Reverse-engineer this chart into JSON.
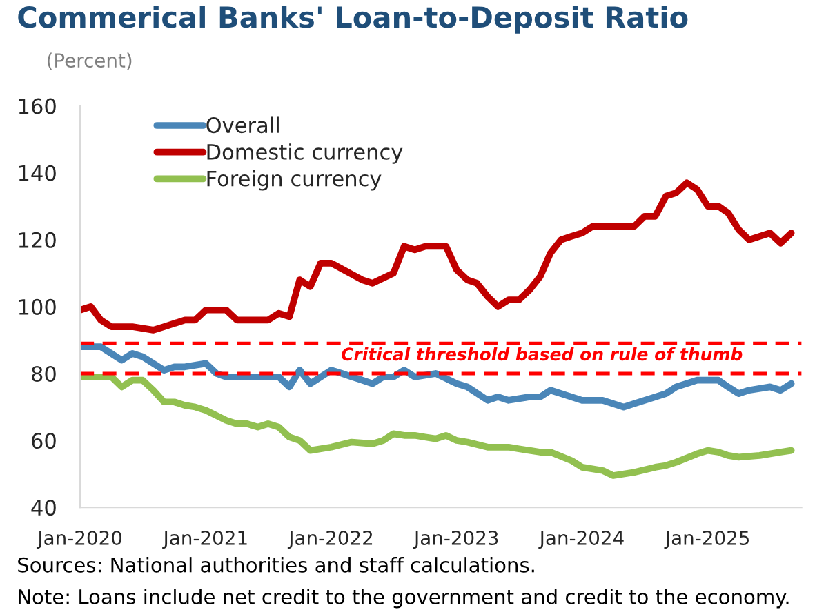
{
  "chart_data": {
    "type": "line",
    "title": "Commerical Banks' Loan-to-Deposit Ratio",
    "subtitle": "(Percent)",
    "xlim": [
      "2020-01",
      "2025-10"
    ],
    "xticks": [
      {
        "value": "2020-01",
        "label": "Jan-2020"
      },
      {
        "value": "2021-01",
        "label": "Jan-2021"
      },
      {
        "value": "2022-01",
        "label": "Jan-2022"
      },
      {
        "value": "2023-01",
        "label": "Jan-2023"
      },
      {
        "value": "2024-01",
        "label": "Jan-2024"
      },
      {
        "value": "2025-01",
        "label": "Jan-2025"
      }
    ],
    "ylim": [
      40,
      160
    ],
    "yticks": [
      40,
      60,
      80,
      100,
      120,
      140,
      160
    ],
    "grid": false,
    "legend": "top left",
    "series": [
      {
        "name": "Overall",
        "color": "#4a86b8",
        "x": [
          "2020-01",
          "2020-03",
          "2020-05",
          "2020-06",
          "2020-07",
          "2020-09",
          "2020-10",
          "2020-11",
          "2021-01",
          "2021-02",
          "2021-03",
          "2021-06",
          "2021-08",
          "2021-09",
          "2021-10",
          "2021-11",
          "2022-01",
          "2022-02",
          "2022-04",
          "2022-05",
          "2022-06",
          "2022-07",
          "2022-08",
          "2022-09",
          "2022-11",
          "2023-01",
          "2023-02",
          "2023-04",
          "2023-05",
          "2023-06",
          "2023-08",
          "2023-09",
          "2023-10",
          "2023-11",
          "2024-01",
          "2024-03",
          "2024-05",
          "2024-06",
          "2024-09",
          "2024-10",
          "2024-12",
          "2025-02",
          "2025-03",
          "2025-04",
          "2025-05",
          "2025-07",
          "2025-08",
          "2025-09"
        ],
        "values": [
          88,
          88,
          84,
          86,
          85,
          81,
          82,
          82,
          83,
          80,
          79,
          79,
          79,
          76,
          81,
          77,
          81,
          80,
          78,
          77,
          79,
          79,
          81,
          79,
          80,
          77,
          76,
          72,
          73,
          72,
          73,
          73,
          75,
          74,
          72,
          72,
          70,
          71,
          74,
          76,
          78,
          78,
          76,
          74,
          75,
          76,
          75,
          77
        ]
      },
      {
        "name": "Domestic currency",
        "color": "#c00000",
        "x": [
          "2020-01",
          "2020-02",
          "2020-03",
          "2020-04",
          "2020-06",
          "2020-08",
          "2020-09",
          "2020-11",
          "2020-12",
          "2021-01",
          "2021-03",
          "2021-04",
          "2021-07",
          "2021-08",
          "2021-09",
          "2021-10",
          "2021-11",
          "2021-12",
          "2022-01",
          "2022-04",
          "2022-05",
          "2022-07",
          "2022-08",
          "2022-09",
          "2022-10",
          "2022-12",
          "2023-01",
          "2023-02",
          "2023-03",
          "2023-04",
          "2023-05",
          "2023-06",
          "2023-07",
          "2023-08",
          "2023-09",
          "2023-10",
          "2023-11",
          "2023-12",
          "2024-01",
          "2024-02",
          "2024-03",
          "2024-05",
          "2024-06",
          "2024-07",
          "2024-08",
          "2024-09",
          "2024-10",
          "2024-11",
          "2024-12",
          "2025-01",
          "2025-02",
          "2025-03",
          "2025-04",
          "2025-05",
          "2025-07",
          "2025-08",
          "2025-09"
        ],
        "values": [
          99,
          100,
          96,
          94,
          94,
          93,
          94,
          96,
          96,
          99,
          99,
          96,
          96,
          98,
          97,
          108,
          106,
          113,
          113,
          108,
          107,
          110,
          118,
          117,
          118,
          118,
          111,
          108,
          107,
          103,
          100,
          102,
          102,
          105,
          109,
          116,
          120,
          121,
          122,
          124,
          124,
          124,
          124,
          127,
          127,
          133,
          134,
          137,
          135,
          130,
          130,
          128,
          123,
          120,
          122,
          119,
          122
        ]
      },
      {
        "name": "Foreign currency",
        "color": "#92c050",
        "x": [
          "2020-01",
          "2020-02",
          "2020-04",
          "2020-05",
          "2020-06",
          "2020-07",
          "2020-08",
          "2020-09",
          "2020-10",
          "2020-11",
          "2020-12",
          "2021-01",
          "2021-03",
          "2021-04",
          "2021-05",
          "2021-06",
          "2021-07",
          "2021-08",
          "2021-09",
          "2021-10",
          "2021-11",
          "2022-01",
          "2022-03",
          "2022-05",
          "2022-06",
          "2022-07",
          "2022-08",
          "2022-09",
          "2022-10",
          "2022-11",
          "2022-12",
          "2023-01",
          "2023-02",
          "2023-04",
          "2023-06",
          "2023-07",
          "2023-09",
          "2023-10",
          "2023-12",
          "2024-01",
          "2024-03",
          "2024-04",
          "2024-06",
          "2024-08",
          "2024-09",
          "2024-10",
          "2024-12",
          "2025-01",
          "2025-02",
          "2025-03",
          "2025-04",
          "2025-06",
          "2025-08",
          "2025-09"
        ],
        "values": [
          79,
          79,
          79,
          76,
          78,
          78,
          75,
          71.5,
          71.5,
          70.5,
          70,
          69,
          66,
          65,
          65,
          64,
          65,
          64,
          61,
          60,
          57,
          58,
          59.5,
          59,
          60,
          62,
          61.5,
          61.5,
          61,
          60.5,
          61.5,
          60,
          59.5,
          58,
          58,
          57.5,
          56.5,
          56.5,
          54,
          52,
          51,
          49.5,
          50.5,
          52,
          52.5,
          53.5,
          56,
          57,
          56.5,
          55.5,
          55,
          55.5,
          56.5,
          57
        ]
      }
    ],
    "ref_lines": [
      {
        "axis": "y",
        "value": 89,
        "color": "#ff0000",
        "line_style": "dashed"
      },
      {
        "axis": "y",
        "value": 80,
        "color": "#ff0000",
        "line_style": "dashed",
        "label": "Critical threshold based on rule of thumb"
      }
    ],
    "annotations": [
      "Sources: National authorities and staff calculations.",
      "Note: Loans include net credit to the government and credit to the economy."
    ]
  }
}
